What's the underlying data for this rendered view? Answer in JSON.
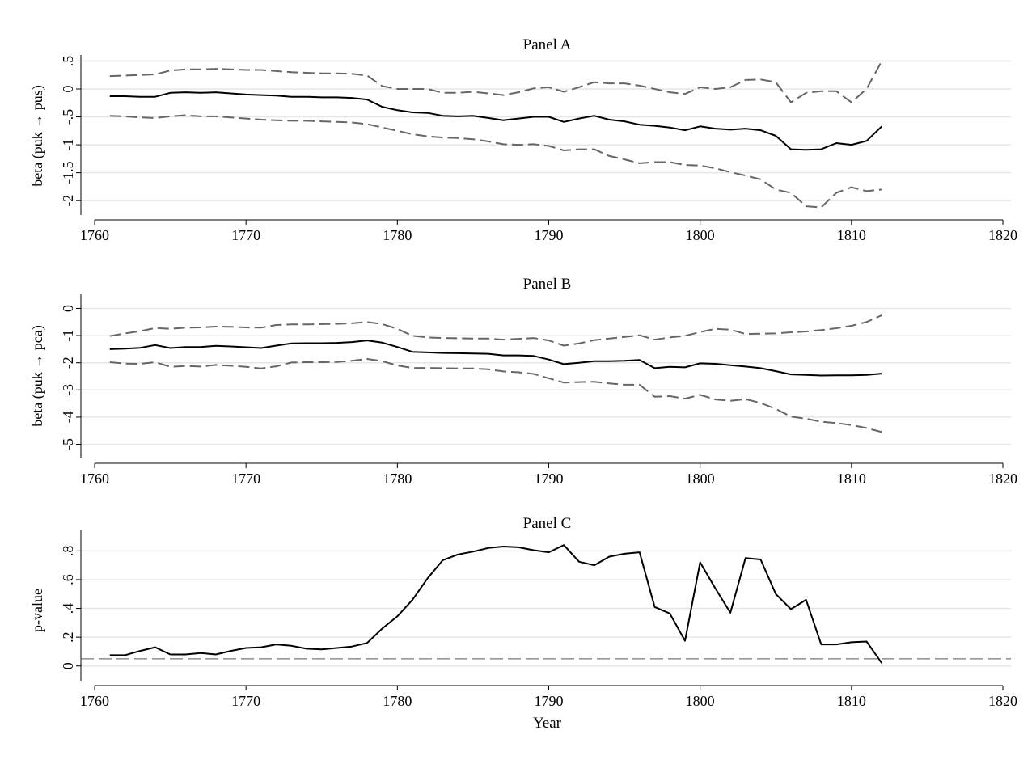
{
  "chart_data": [
    {
      "type": "line",
      "title": "Panel A",
      "ylabel": "beta (puk → pus)",
      "xlabel": "",
      "xlim": [
        1760,
        1820
      ],
      "ylim": [
        -2.2,
        0.55
      ],
      "xticks": [
        1760,
        1770,
        1780,
        1790,
        1800,
        1810,
        1820
      ],
      "yticks": [
        -2,
        -1.5,
        -1,
        -0.5,
        0,
        0.5
      ],
      "ytick_labels": [
        "-2",
        "-1.5",
        "-1",
        "-.5",
        "0",
        ".5"
      ],
      "grid": true,
      "x": [
        1761,
        1762,
        1763,
        1764,
        1765,
        1766,
        1767,
        1768,
        1769,
        1770,
        1771,
        1772,
        1773,
        1774,
        1775,
        1776,
        1777,
        1778,
        1779,
        1780,
        1781,
        1782,
        1783,
        1784,
        1785,
        1786,
        1787,
        1788,
        1789,
        1790,
        1791,
        1792,
        1793,
        1794,
        1795,
        1796,
        1797,
        1798,
        1799,
        1800,
        1801,
        1802,
        1803,
        1804,
        1805,
        1806,
        1807,
        1808,
        1809,
        1810,
        1811,
        1812
      ],
      "series": [
        {
          "style": "solid",
          "values": [
            -0.13,
            -0.13,
            -0.14,
            -0.14,
            -0.07,
            -0.06,
            -0.07,
            -0.06,
            -0.08,
            -0.1,
            -0.11,
            -0.12,
            -0.14,
            -0.14,
            -0.15,
            -0.15,
            -0.16,
            -0.19,
            -0.32,
            -0.38,
            -0.42,
            -0.43,
            -0.48,
            -0.49,
            -0.48,
            -0.52,
            -0.56,
            -0.53,
            -0.5,
            -0.5,
            -0.59,
            -0.53,
            -0.48,
            -0.55,
            -0.58,
            -0.64,
            -0.66,
            -0.69,
            -0.74,
            -0.67,
            -0.71,
            -0.73,
            -0.71,
            -0.74,
            -0.84,
            -1.08,
            -1.09,
            -1.08,
            -0.97,
            -1.0,
            -0.93,
            -0.67
          ]
        },
        {
          "style": "dashed",
          "values": [
            0.23,
            0.24,
            0.25,
            0.26,
            0.33,
            0.35,
            0.35,
            0.36,
            0.35,
            0.34,
            0.34,
            0.32,
            0.3,
            0.29,
            0.28,
            0.28,
            0.27,
            0.24,
            0.05,
            0.0,
            0.0,
            0.0,
            -0.07,
            -0.07,
            -0.05,
            -0.08,
            -0.11,
            -0.06,
            0.01,
            0.03,
            -0.05,
            0.03,
            0.12,
            0.1,
            0.1,
            0.06,
            0.0,
            -0.06,
            -0.09,
            0.03,
            0.0,
            0.03,
            0.16,
            0.17,
            0.12,
            -0.24,
            -0.07,
            -0.04,
            -0.04,
            -0.24,
            0.0,
            0.5
          ]
        },
        {
          "style": "dashed",
          "values": [
            -0.48,
            -0.49,
            -0.51,
            -0.52,
            -0.49,
            -0.47,
            -0.49,
            -0.49,
            -0.51,
            -0.53,
            -0.55,
            -0.56,
            -0.57,
            -0.57,
            -0.58,
            -0.59,
            -0.6,
            -0.63,
            -0.69,
            -0.75,
            -0.81,
            -0.85,
            -0.87,
            -0.88,
            -0.9,
            -0.94,
            -0.99,
            -1.0,
            -0.99,
            -1.02,
            -1.1,
            -1.08,
            -1.08,
            -1.2,
            -1.26,
            -1.33,
            -1.31,
            -1.31,
            -1.36,
            -1.37,
            -1.42,
            -1.49,
            -1.55,
            -1.62,
            -1.8,
            -1.86,
            -2.1,
            -2.12,
            -1.86,
            -1.76,
            -1.83,
            -1.8
          ]
        }
      ]
    },
    {
      "type": "line",
      "title": "Panel B",
      "ylabel": "beta (puk → pca)",
      "xlabel": "",
      "xlim": [
        1760,
        1820
      ],
      "ylim": [
        -5.4,
        0.4
      ],
      "xticks": [
        1760,
        1770,
        1780,
        1790,
        1800,
        1810,
        1820
      ],
      "yticks": [
        -5,
        -4,
        -3,
        -2,
        -1,
        0
      ],
      "ytick_labels": [
        "-5",
        "-4",
        "-3",
        "-2",
        "-1",
        "0"
      ],
      "grid": true,
      "x": [
        1761,
        1762,
        1763,
        1764,
        1765,
        1766,
        1767,
        1768,
        1769,
        1770,
        1771,
        1772,
        1773,
        1774,
        1775,
        1776,
        1777,
        1778,
        1779,
        1780,
        1781,
        1782,
        1783,
        1784,
        1785,
        1786,
        1787,
        1788,
        1789,
        1790,
        1791,
        1792,
        1793,
        1794,
        1795,
        1796,
        1797,
        1798,
        1799,
        1800,
        1801,
        1802,
        1803,
        1804,
        1805,
        1806,
        1807,
        1808,
        1809,
        1810,
        1811,
        1812
      ],
      "series": [
        {
          "style": "solid",
          "values": [
            -1.5,
            -1.48,
            -1.45,
            -1.35,
            -1.46,
            -1.42,
            -1.42,
            -1.38,
            -1.4,
            -1.43,
            -1.46,
            -1.37,
            -1.29,
            -1.28,
            -1.28,
            -1.27,
            -1.24,
            -1.18,
            -1.26,
            -1.42,
            -1.6,
            -1.62,
            -1.64,
            -1.65,
            -1.66,
            -1.67,
            -1.73,
            -1.73,
            -1.75,
            -1.88,
            -2.05,
            -2.0,
            -1.94,
            -1.94,
            -1.93,
            -1.9,
            -2.2,
            -2.15,
            -2.17,
            -2.02,
            -2.04,
            -2.09,
            -2.14,
            -2.2,
            -2.31,
            -2.43,
            -2.45,
            -2.47,
            -2.46,
            -2.46,
            -2.45,
            -2.4
          ]
        },
        {
          "style": "dashed",
          "values": [
            -1.02,
            -0.92,
            -0.84,
            -0.72,
            -0.75,
            -0.71,
            -0.7,
            -0.67,
            -0.68,
            -0.7,
            -0.71,
            -0.61,
            -0.59,
            -0.59,
            -0.58,
            -0.57,
            -0.55,
            -0.5,
            -0.58,
            -0.75,
            -1.01,
            -1.07,
            -1.09,
            -1.1,
            -1.11,
            -1.11,
            -1.15,
            -1.12,
            -1.09,
            -1.18,
            -1.37,
            -1.29,
            -1.17,
            -1.11,
            -1.05,
            -0.99,
            -1.15,
            -1.07,
            -1.01,
            -0.87,
            -0.75,
            -0.78,
            -0.94,
            -0.93,
            -0.92,
            -0.88,
            -0.85,
            -0.8,
            -0.73,
            -0.64,
            -0.5,
            -0.25
          ]
        },
        {
          "style": "dashed",
          "values": [
            -1.98,
            -2.03,
            -2.04,
            -1.98,
            -2.15,
            -2.12,
            -2.14,
            -2.08,
            -2.11,
            -2.15,
            -2.21,
            -2.13,
            -1.99,
            -1.98,
            -1.98,
            -1.97,
            -1.93,
            -1.86,
            -1.94,
            -2.1,
            -2.19,
            -2.19,
            -2.2,
            -2.21,
            -2.21,
            -2.24,
            -2.32,
            -2.35,
            -2.41,
            -2.57,
            -2.73,
            -2.71,
            -2.7,
            -2.76,
            -2.81,
            -2.81,
            -3.25,
            -3.23,
            -3.32,
            -3.18,
            -3.35,
            -3.4,
            -3.34,
            -3.48,
            -3.7,
            -3.98,
            -4.06,
            -4.17,
            -4.22,
            -4.29,
            -4.4,
            -4.55
          ]
        }
      ]
    },
    {
      "type": "line",
      "title": "Panel C",
      "ylabel": "p-value",
      "xlabel": "Year",
      "xlim": [
        1760,
        1820
      ],
      "ylim": [
        -0.08,
        0.92
      ],
      "xticks": [
        1760,
        1770,
        1780,
        1790,
        1800,
        1810,
        1820
      ],
      "yticks": [
        0,
        0.2,
        0.4,
        0.6,
        0.8
      ],
      "ytick_labels": [
        "0",
        ".2",
        ".4",
        ".6",
        ".8"
      ],
      "grid": true,
      "reference_line": {
        "y": 0.05,
        "style": "dashed"
      },
      "x": [
        1761,
        1762,
        1763,
        1764,
        1765,
        1766,
        1767,
        1768,
        1769,
        1770,
        1771,
        1772,
        1773,
        1774,
        1775,
        1776,
        1777,
        1778,
        1779,
        1780,
        1781,
        1782,
        1783,
        1784,
        1785,
        1786,
        1787,
        1788,
        1789,
        1790,
        1791,
        1792,
        1793,
        1794,
        1795,
        1796,
        1797,
        1798,
        1799,
        1800,
        1801,
        1802,
        1803,
        1804,
        1805,
        1806,
        1807,
        1808,
        1809,
        1810,
        1811,
        1812
      ],
      "series": [
        {
          "style": "solid",
          "values": [
            0.075,
            0.075,
            0.105,
            0.13,
            0.08,
            0.08,
            0.09,
            0.08,
            0.105,
            0.125,
            0.13,
            0.15,
            0.14,
            0.12,
            0.115,
            0.125,
            0.135,
            0.16,
            0.26,
            0.345,
            0.46,
            0.61,
            0.735,
            0.775,
            0.795,
            0.82,
            0.83,
            0.825,
            0.805,
            0.79,
            0.84,
            0.725,
            0.7,
            0.76,
            0.78,
            0.79,
            0.41,
            0.365,
            0.175,
            0.72,
            0.54,
            0.37,
            0.75,
            0.74,
            0.5,
            0.395,
            0.46,
            0.15,
            0.15,
            0.165,
            0.17,
            0.02
          ]
        }
      ]
    }
  ]
}
